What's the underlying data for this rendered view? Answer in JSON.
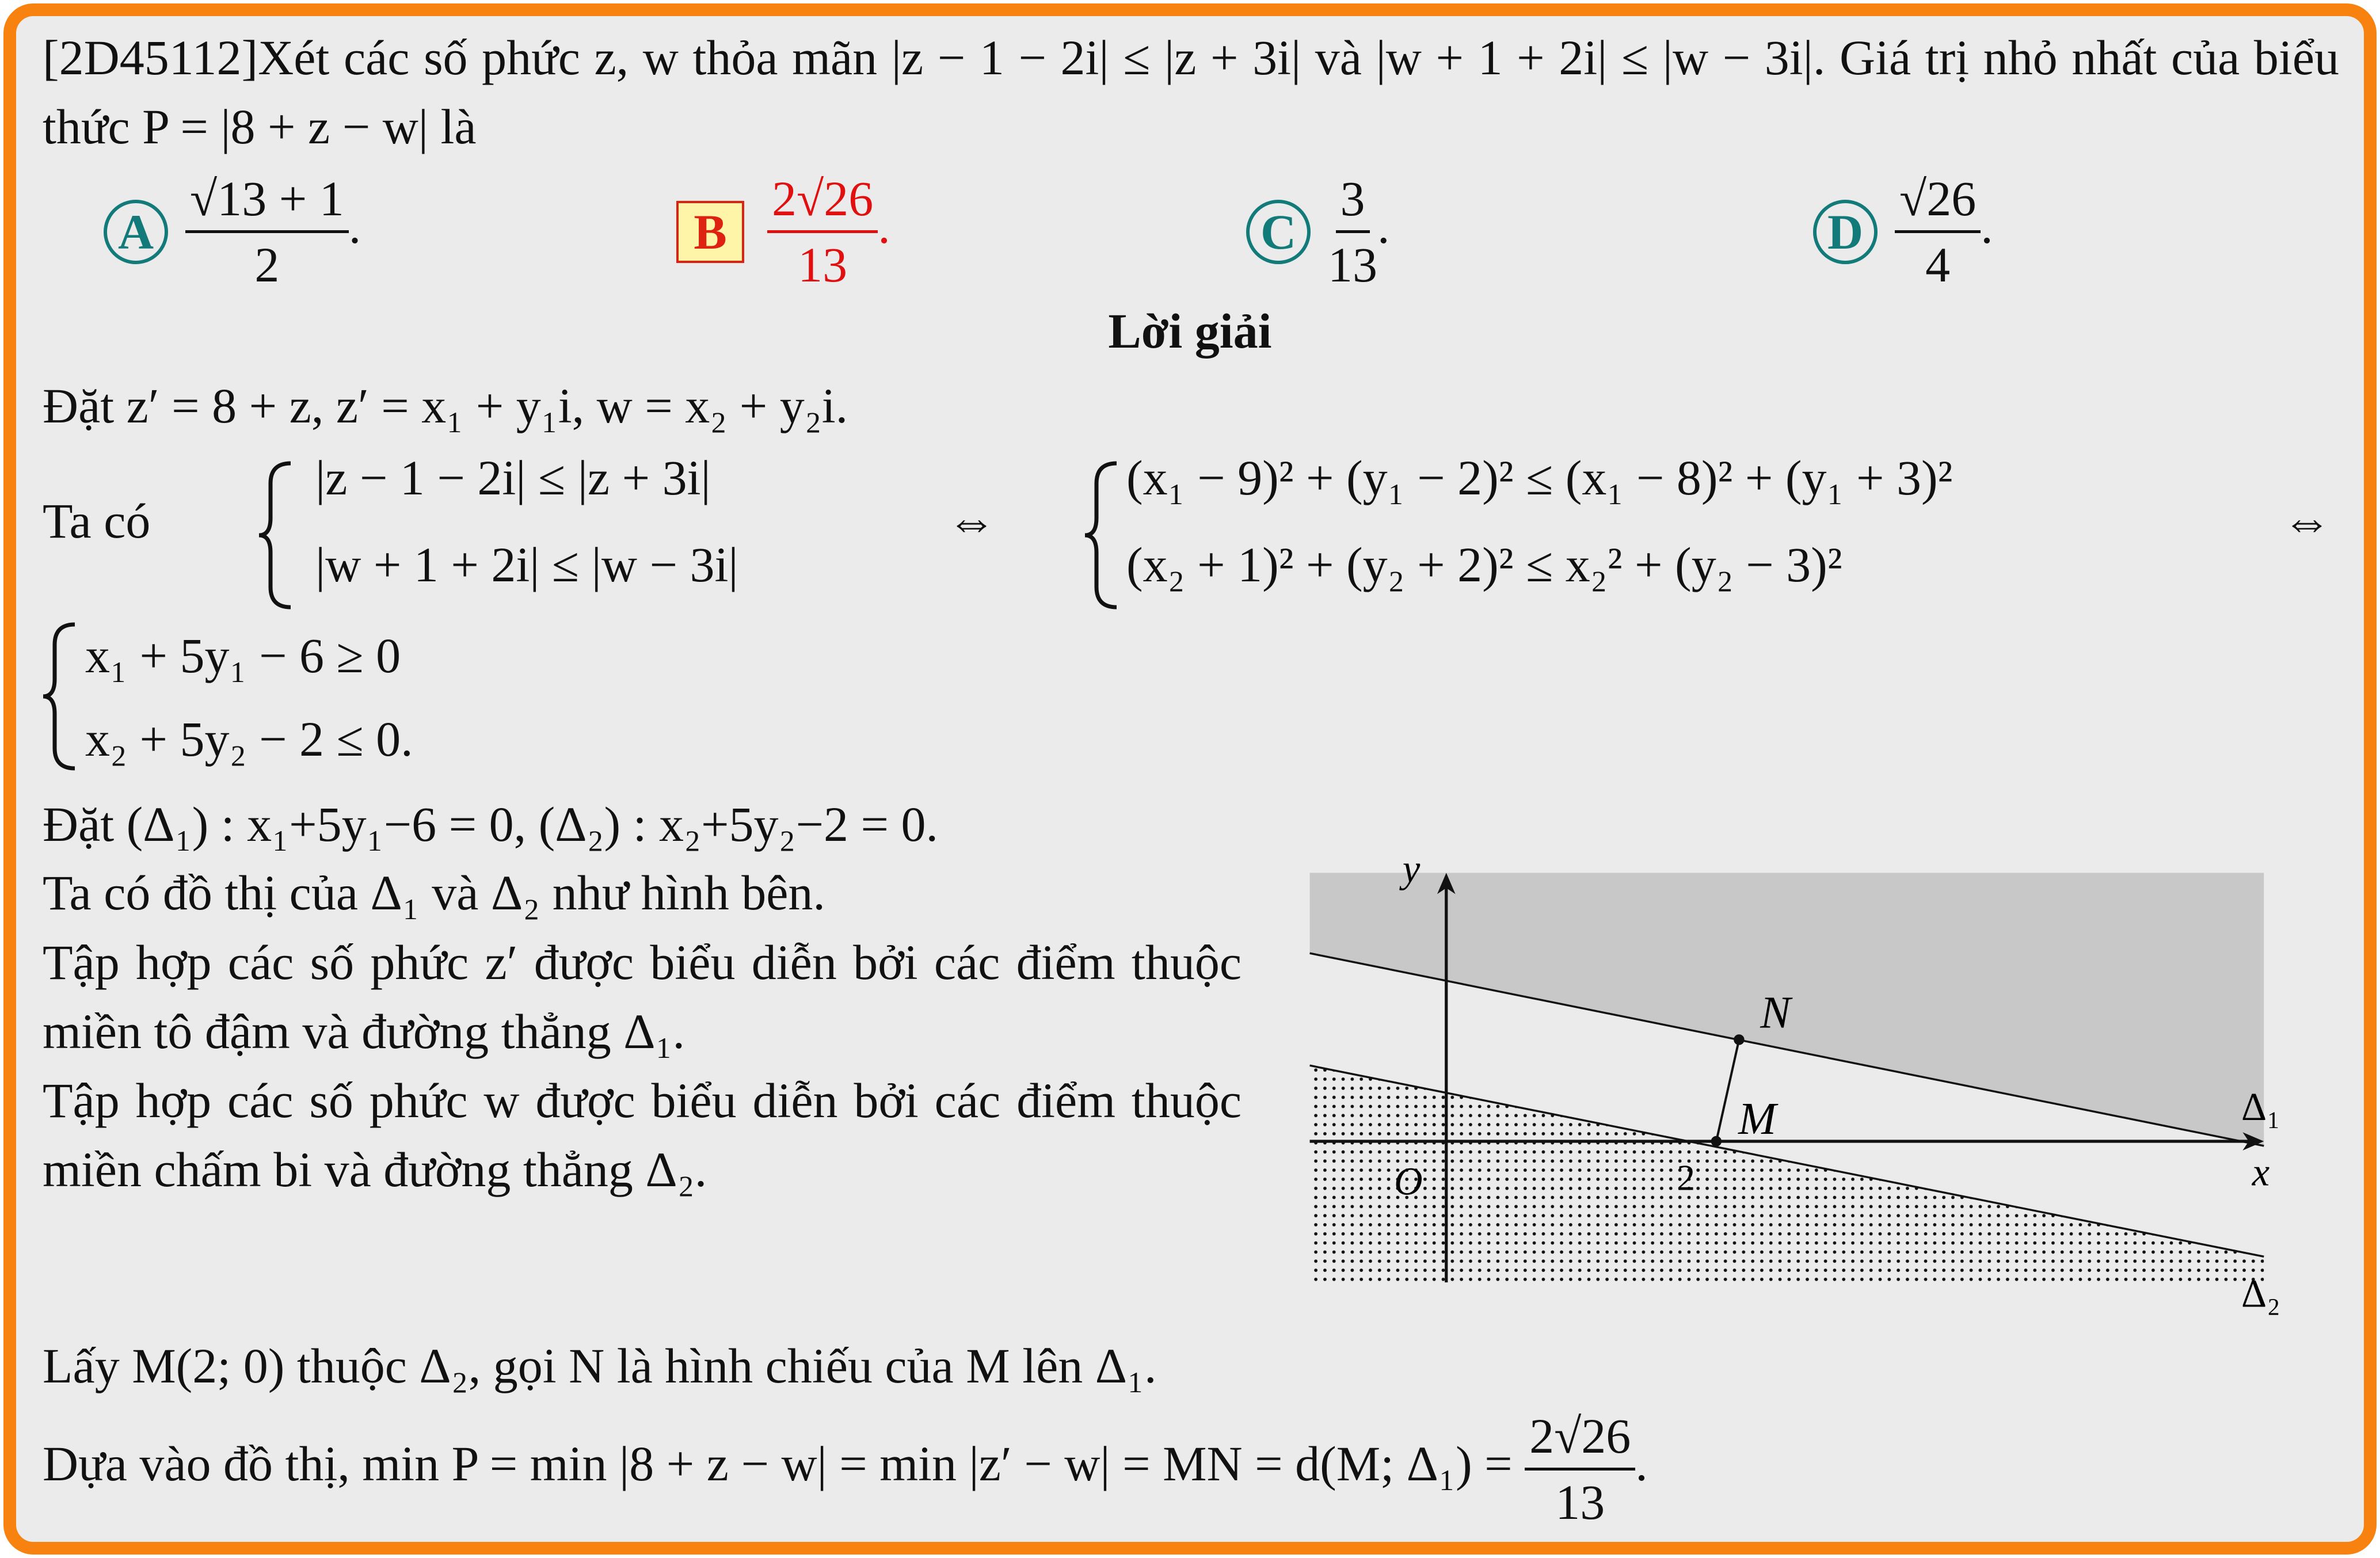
{
  "problem": {
    "code": "[2D45112]",
    "text": "Xét các số phức z, w thỏa mãn |z − 1 − 2i| ≤ |z + 3i| và |w + 1 + 2i| ≤ |w − 3i|. Giá trị nhỏ nhất của biểu thức P = |8 + z − w| là"
  },
  "choices": [
    {
      "label": "A",
      "numerator": "√13 + 1",
      "denominator": "2",
      "suffix": "."
    },
    {
      "label": "B",
      "numerator": "2√26",
      "denominator": "13",
      "suffix": "."
    },
    {
      "label": "C",
      "numerator": "3",
      "denominator": "13",
      "suffix": "."
    },
    {
      "label": "D",
      "numerator": "√26",
      "denominator": "4",
      "suffix": "."
    }
  ],
  "solution": {
    "heading": "Lời giải",
    "substitution": "Đặt z′ = 8 + z, z′ = x₁ + y₁i, w = x₂ + y₂i.",
    "system1": {
      "intro": "Ta có",
      "left": [
        "|z − 1 − 2i| ≤ |z + 3i|",
        "|w + 1 + 2i| ≤ |w − 3i|"
      ],
      "equiv": "⇔",
      "right": [
        "(x₁ − 9)² + (y₁ − 2)² ≤ (x₁ − 8)² + (y₁ + 3)²",
        "(x₂ + 1)² + (y₂ + 2)² ≤ x₂² + (y₂ − 3)²"
      ]
    },
    "system2": [
      "x₁ + 5y₁ − 6 ≥ 0",
      "x₂ + 5y₂ − 2 ≤ 0."
    ],
    "paragraphs": [
      "Đặt (Δ₁) : x₁+5y₁−6 = 0, (Δ₂) : x₂+5y₂−2 = 0.",
      "Ta có đồ thị của Δ₁ và Δ₂ như hình bên.",
      "Tập hợp các số phức z′ được biểu diễn bởi các điểm thuộc miền tô đậm và đường thẳng Δ₁.",
      "Tập hợp các số phức w được biểu diễn bởi các điểm thuộc miền chấm bi và đường thẳng Δ₂."
    ],
    "figure": {
      "y_label": "y",
      "x_label": "x",
      "origin": "O",
      "tick": "2",
      "point_n": "N",
      "point_m": "M",
      "delta1": "Δ₁",
      "delta2": "Δ₂"
    },
    "conclusion1": "Lấy M(2; 0) thuộc Δ₂, gọi N là hình chiếu của M lên Δ₁.",
    "conclusion2": {
      "text": "Dựa vào đồ thị, min P = min |8 + z − w| = min |z′ − w| = MN = d(M; Δ₁) =",
      "numerator": "2√26",
      "denominator": "13",
      "suffix": "."
    }
  }
}
